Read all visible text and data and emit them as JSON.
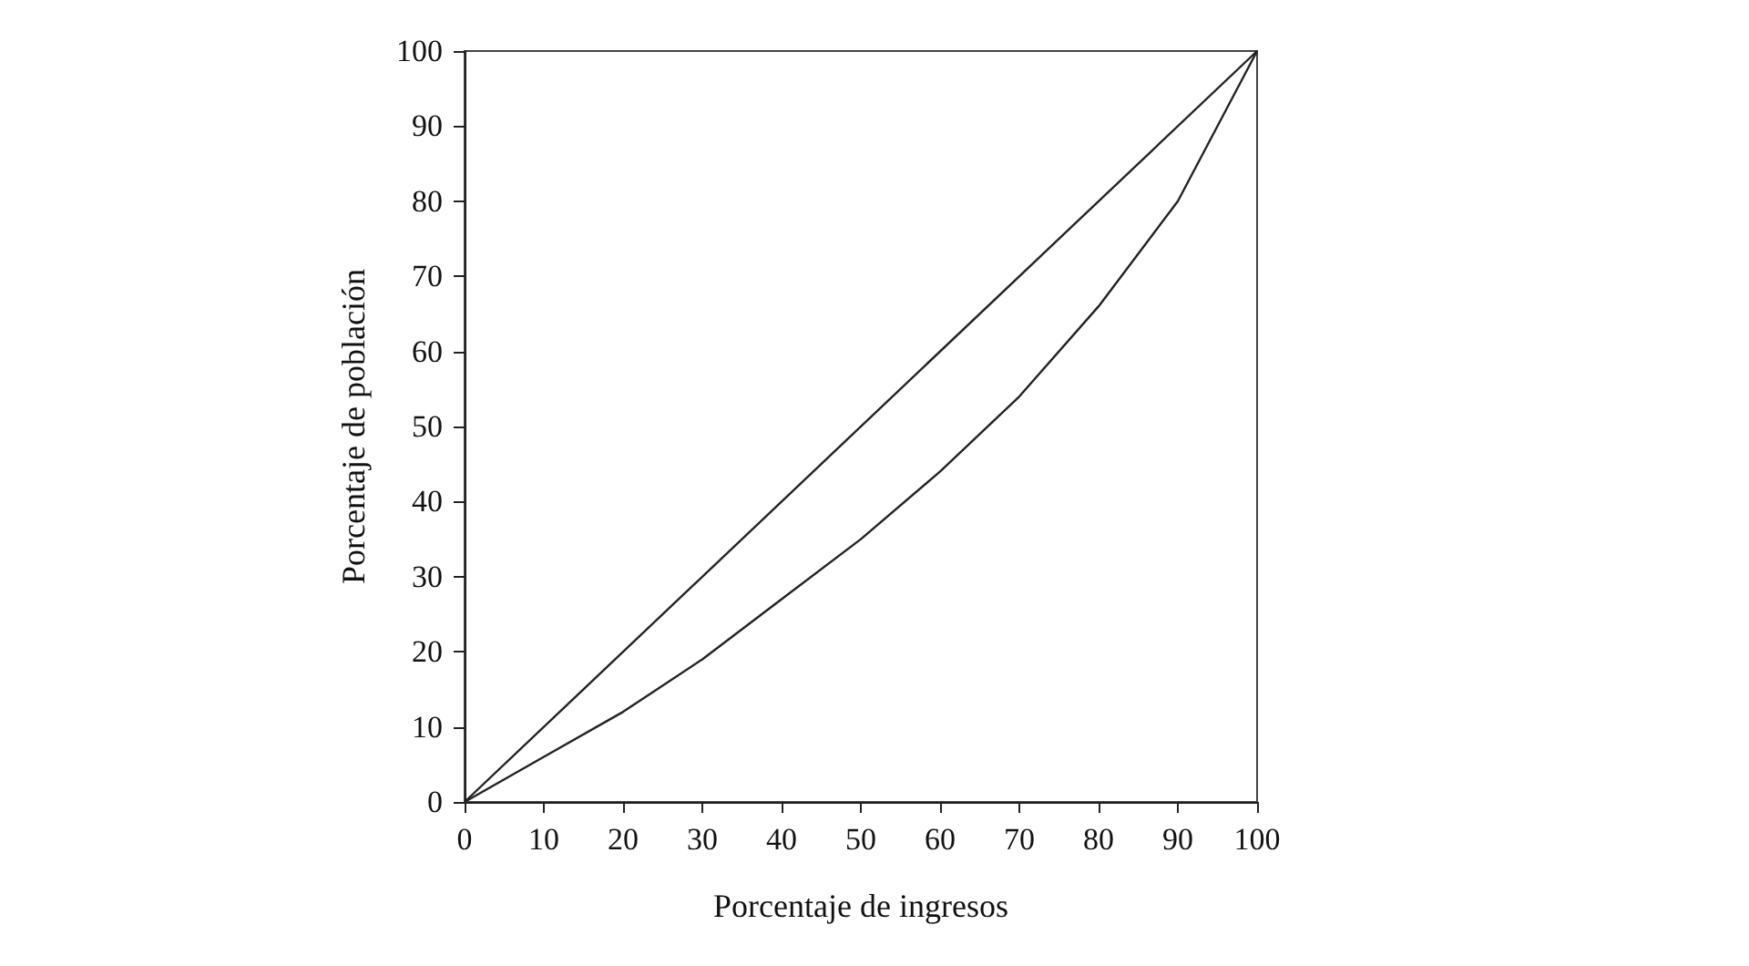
{
  "chart_data": {
    "type": "line",
    "xlabel": "Porcentaje de ingresos",
    "ylabel": "Porcentaje de población",
    "series": [
      {
        "color": "#222222",
        "x": [
          0,
          100
        ],
        "values": [
          0,
          100
        ]
      },
      {
        "color": "#222222",
        "x": [
          0,
          10,
          20,
          30,
          40,
          50,
          60,
          70,
          80,
          90,
          100
        ],
        "values": [
          0,
          6,
          12,
          19,
          27,
          35,
          44,
          54,
          66,
          80,
          100
        ]
      }
    ],
    "xlim": [
      0,
      100
    ],
    "ylim": [
      0,
      100
    ],
    "xticks": [
      0,
      10,
      20,
      30,
      40,
      50,
      60,
      70,
      80,
      90,
      100
    ],
    "yticks": [
      0,
      10,
      20,
      30,
      40,
      50,
      60,
      70,
      80,
      90,
      100
    ],
    "grid": false,
    "marker": "none",
    "line_style": "solid"
  }
}
